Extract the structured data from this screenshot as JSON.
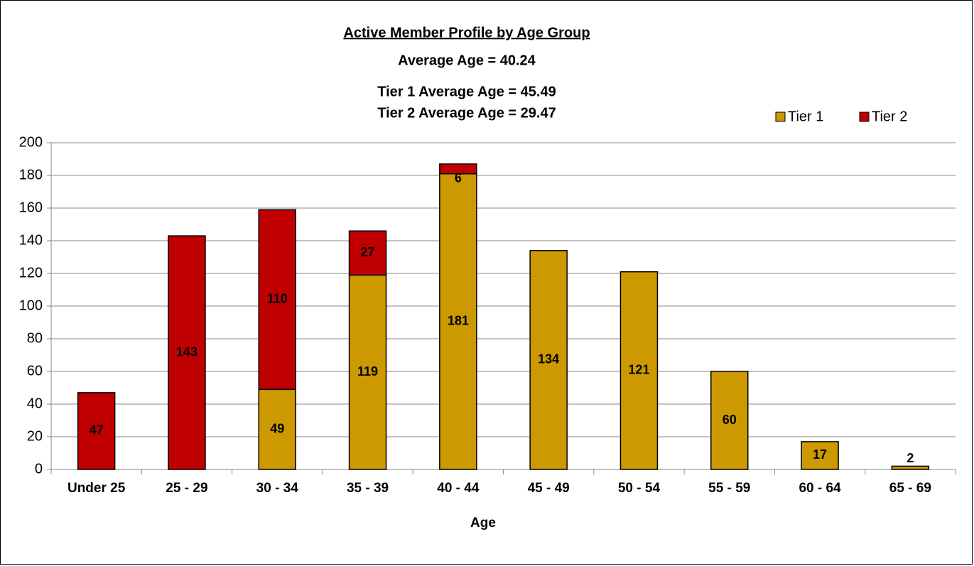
{
  "chart_data": {
    "type": "stacked_bar",
    "title": "Active Member Profile by Age Group",
    "subtitles": [
      "Average Age = 40.24",
      "Tier 1 Average Age = 45.49",
      "Tier 2 Average Age = 29.47"
    ],
    "x_label": "Age",
    "categories": [
      "Under 25",
      "25 - 29",
      "30 - 34",
      "35 - 39",
      "40 - 44",
      "45 - 49",
      "50 - 54",
      "55 - 59",
      "60 - 64",
      "65 - 69"
    ],
    "series": [
      {
        "name": "Tier 1",
        "color": "#cc9900",
        "label_color": "#111111",
        "values": [
          null,
          null,
          49,
          119,
          181,
          134,
          121,
          60,
          17,
          2
        ]
      },
      {
        "name": "Tier 2",
        "color": "#c00000",
        "label_color": "#ffffff",
        "values": [
          47,
          143,
          110,
          27,
          6,
          null,
          null,
          null,
          null,
          null
        ]
      }
    ],
    "ylim": [
      0,
      200
    ],
    "yticks": [
      0,
      20,
      40,
      60,
      80,
      100,
      120,
      140,
      160,
      180,
      200
    ],
    "grid": true,
    "legend": "top-right"
  }
}
